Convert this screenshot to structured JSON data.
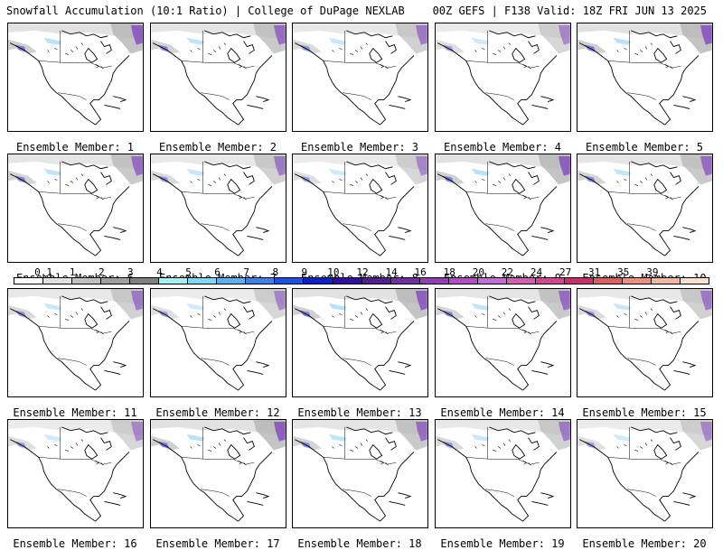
{
  "header": {
    "left": "Snowfall Accumulation (10:1 Ratio) | College of DuPage NEXLAB",
    "right": "00Z GEFS | F138 Valid: 18Z FRI JUN 13 2025"
  },
  "panels": [
    {
      "label": "Ensemble Member: 1"
    },
    {
      "label": "Ensemble Member: 2"
    },
    {
      "label": "Ensemble Member: 3"
    },
    {
      "label": "Ensemble Member: 4"
    },
    {
      "label": "Ensemble Member: 5"
    },
    {
      "label": "Ensemble Member: 6"
    },
    {
      "label": "Ensemble Member: 7"
    },
    {
      "label": "Ensemble Member: 8"
    },
    {
      "label": "Ensemble Member: 9"
    },
    {
      "label": "Ensemble Member: 10"
    },
    {
      "label": "Ensemble Member: 11"
    },
    {
      "label": "Ensemble Member: 12"
    },
    {
      "label": "Ensemble Member: 13"
    },
    {
      "label": "Ensemble Member: 14"
    },
    {
      "label": "Ensemble Member: 15"
    },
    {
      "label": "Ensemble Member: 16"
    },
    {
      "label": "Ensemble Member: 17"
    },
    {
      "label": "Ensemble Member: 18"
    },
    {
      "label": "Ensemble Member: 19"
    },
    {
      "label": "Ensemble Member: 20"
    }
  ],
  "colorbar": {
    "labels": [
      "0.1",
      "1",
      "2",
      "3",
      "4",
      "5",
      "6",
      "7",
      "8",
      "9",
      "10",
      "12",
      "14",
      "16",
      "18",
      "20",
      "22",
      "24",
      "27",
      "31",
      "35",
      "39"
    ],
    "colors": [
      "#ffffff",
      "#e0e0e0",
      "#c0c0c0",
      "#a0a0a0",
      "#808080",
      "#a8f0f0",
      "#80d8f8",
      "#60b0f0",
      "#4080e8",
      "#2050e0",
      "#1020c8",
      "#3010a0",
      "#502090",
      "#7030a0",
      "#9040b0",
      "#b050c0",
      "#c070d0",
      "#d060b0",
      "#d04890",
      "#c83070",
      "#d86060",
      "#e89080",
      "#f0b8a0",
      "#f8e0d0"
    ]
  }
}
